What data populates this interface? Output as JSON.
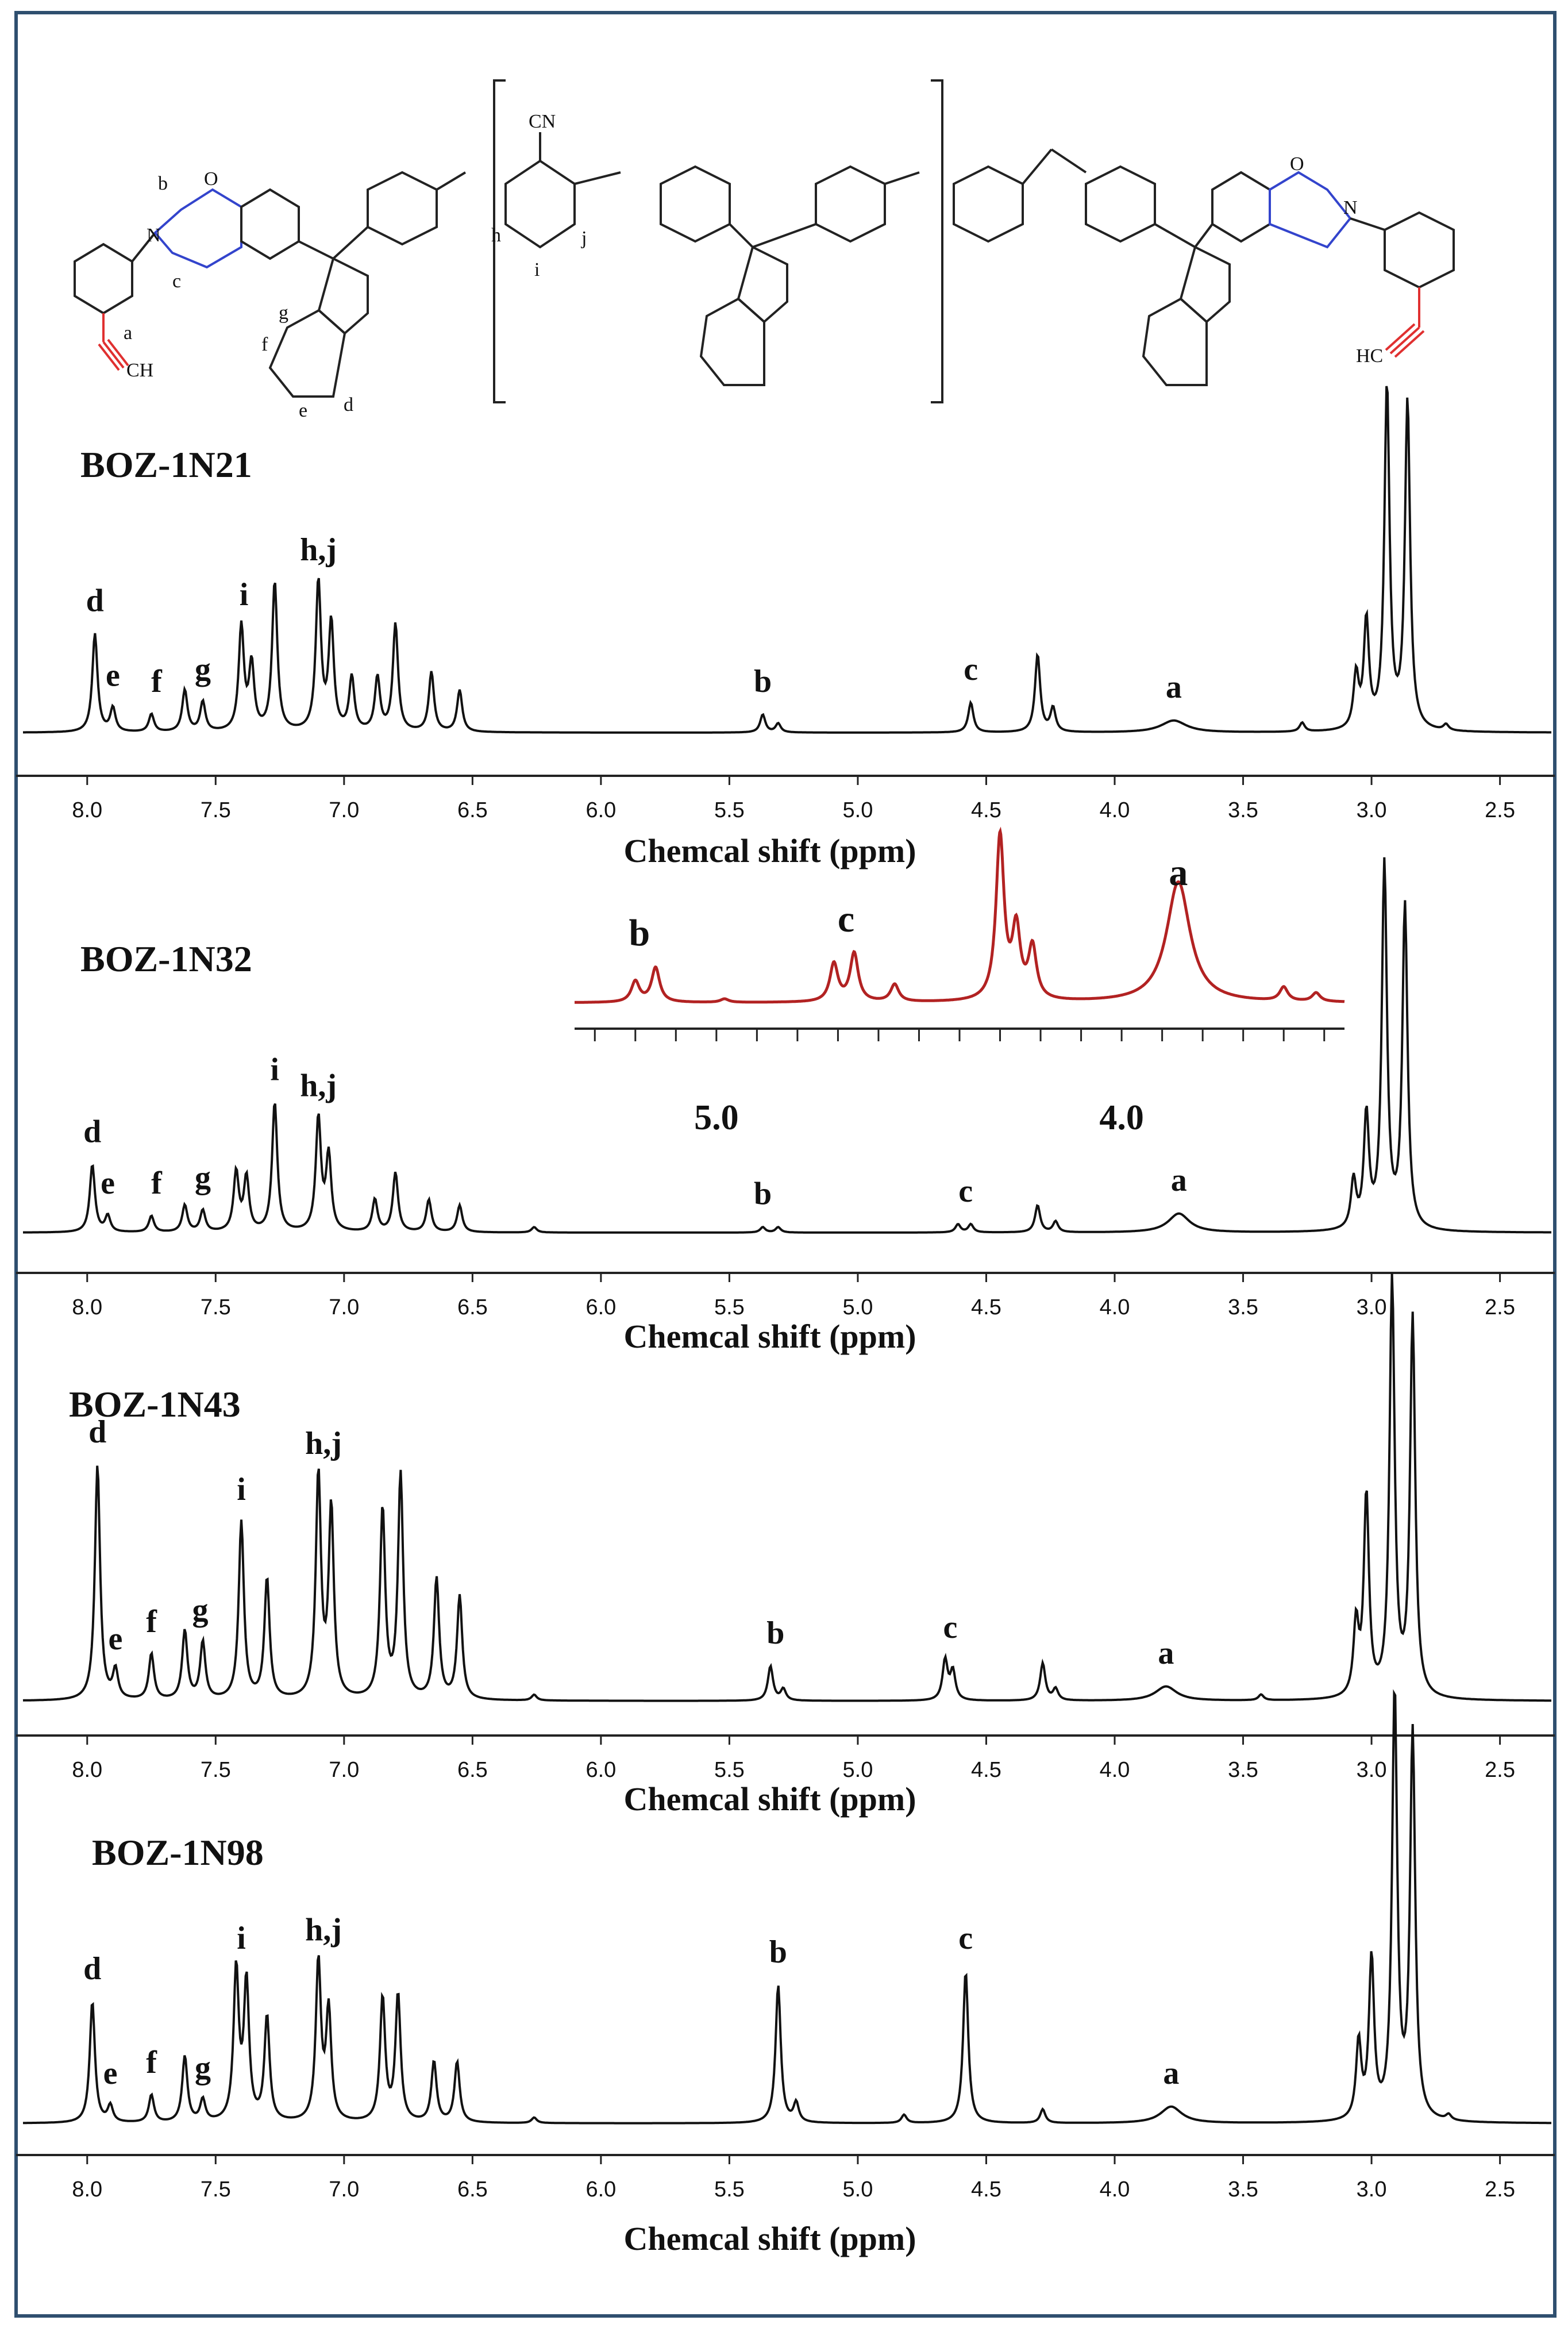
{
  "figure": {
    "border_color": "#2f4f6f",
    "structure": {
      "labels": [
        "b",
        "c",
        "a",
        "g",
        "f",
        "e",
        "d",
        "h",
        "i",
        "j",
        "CN",
        "CH",
        "HC",
        "N",
        "O"
      ],
      "end_group_color": "#e03030",
      "oxazine_color": "#3344cc"
    }
  },
  "chart_data": [
    {
      "type": "line",
      "name": "BOZ-1N21",
      "title": "BOZ-1N21",
      "xlabel": "Chemcal shift (ppm)",
      "xlim": [
        8.25,
        2.3
      ],
      "ticks": [
        "8.0",
        "7.5",
        "7.0",
        "6.5",
        "6.0",
        "5.5",
        "5.0",
        "4.5",
        "4.0",
        "3.5",
        "3.0",
        "2.5"
      ],
      "color": "#111111",
      "peaks": [
        {
          "x": 7.97,
          "h": 0.33
        },
        {
          "x": 7.9,
          "h": 0.08
        },
        {
          "x": 7.75,
          "h": 0.06
        },
        {
          "x": 7.62,
          "h": 0.14
        },
        {
          "x": 7.55,
          "h": 0.1
        },
        {
          "x": 7.4,
          "h": 0.35
        },
        {
          "x": 7.36,
          "h": 0.22
        },
        {
          "x": 7.27,
          "h": 0.5
        },
        {
          "x": 7.1,
          "h": 0.5
        },
        {
          "x": 7.05,
          "h": 0.36
        },
        {
          "x": 6.97,
          "h": 0.18
        },
        {
          "x": 6.87,
          "h": 0.18
        },
        {
          "x": 6.8,
          "h": 0.36
        },
        {
          "x": 6.66,
          "h": 0.2
        },
        {
          "x": 6.55,
          "h": 0.14
        },
        {
          "x": 5.37,
          "h": 0.06
        },
        {
          "x": 5.31,
          "h": 0.03
        },
        {
          "x": 4.56,
          "h": 0.1
        },
        {
          "x": 4.3,
          "h": 0.26
        },
        {
          "x": 4.24,
          "h": 0.08
        },
        {
          "x": 3.77,
          "h": 0.04,
          "w": 0.06
        },
        {
          "x": 3.27,
          "h": 0.03
        },
        {
          "x": 3.06,
          "h": 0.18
        },
        {
          "x": 3.02,
          "h": 0.36
        },
        {
          "x": 2.94,
          "h": 1.15
        },
        {
          "x": 2.86,
          "h": 1.1
        },
        {
          "x": 2.71,
          "h": 0.02
        }
      ],
      "annotations": [
        {
          "text": "d",
          "x": 7.97
        },
        {
          "text": "e",
          "x": 7.9
        },
        {
          "text": "f",
          "x": 7.73
        },
        {
          "text": "g",
          "x": 7.55
        },
        {
          "text": "i",
          "x": 7.39
        },
        {
          "text": "h,j",
          "x": 7.1
        },
        {
          "text": "b",
          "x": 5.37
        },
        {
          "text": "c",
          "x": 4.56
        },
        {
          "text": "a",
          "x": 3.77
        }
      ]
    },
    {
      "type": "line",
      "name": "BOZ-1N32",
      "title": "BOZ-1N32",
      "xlabel": "Chemcal shift (ppm)",
      "xlim": [
        8.25,
        2.3
      ],
      "ticks": [
        "8.0",
        "7.5",
        "7.0",
        "6.5",
        "6.0",
        "5.5",
        "5.0",
        "4.5",
        "4.0",
        "3.5",
        "3.0",
        "2.5"
      ],
      "color": "#111111",
      "peaks": [
        {
          "x": 7.98,
          "h": 0.25
        },
        {
          "x": 7.92,
          "h": 0.06
        },
        {
          "x": 7.75,
          "h": 0.06
        },
        {
          "x": 7.62,
          "h": 0.1
        },
        {
          "x": 7.55,
          "h": 0.08
        },
        {
          "x": 7.42,
          "h": 0.22
        },
        {
          "x": 7.38,
          "h": 0.2
        },
        {
          "x": 7.27,
          "h": 0.48
        },
        {
          "x": 7.1,
          "h": 0.42
        },
        {
          "x": 7.06,
          "h": 0.28
        },
        {
          "x": 6.88,
          "h": 0.12
        },
        {
          "x": 6.8,
          "h": 0.22
        },
        {
          "x": 6.67,
          "h": 0.12
        },
        {
          "x": 6.55,
          "h": 0.1
        },
        {
          "x": 6.26,
          "h": 0.02
        },
        {
          "x": 5.37,
          "h": 0.02
        },
        {
          "x": 5.31,
          "h": 0.02
        },
        {
          "x": 4.61,
          "h": 0.03
        },
        {
          "x": 4.56,
          "h": 0.03
        },
        {
          "x": 4.3,
          "h": 0.1
        },
        {
          "x": 4.23,
          "h": 0.04
        },
        {
          "x": 3.75,
          "h": 0.07,
          "w": 0.05
        },
        {
          "x": 3.07,
          "h": 0.18
        },
        {
          "x": 3.02,
          "h": 0.42
        },
        {
          "x": 2.95,
          "h": 1.35
        },
        {
          "x": 2.87,
          "h": 1.2
        }
      ],
      "annotations": [
        {
          "text": "d",
          "x": 7.98
        },
        {
          "text": "e",
          "x": 7.92
        },
        {
          "text": "f",
          "x": 7.73
        },
        {
          "text": "g",
          "x": 7.55
        },
        {
          "text": "i",
          "x": 7.27
        },
        {
          "text": "h,j",
          "x": 7.1
        },
        {
          "text": "b",
          "x": 5.37
        },
        {
          "text": "c",
          "x": 4.58
        },
        {
          "text": "a",
          "x": 3.75
        }
      ],
      "inset": {
        "color": "#b22222",
        "xlim": [
          5.35,
          3.45
        ],
        "ticks": [
          "5.0",
          "4.0"
        ],
        "peaks": [
          {
            "x": 5.2,
            "h": 0.12
          },
          {
            "x": 5.15,
            "h": 0.2
          },
          {
            "x": 4.98,
            "h": 0.02
          },
          {
            "x": 4.71,
            "h": 0.22
          },
          {
            "x": 4.66,
            "h": 0.28
          },
          {
            "x": 4.56,
            "h": 0.1
          },
          {
            "x": 4.3,
            "h": 0.95
          },
          {
            "x": 4.26,
            "h": 0.4
          },
          {
            "x": 4.22,
            "h": 0.3
          },
          {
            "x": 3.86,
            "h": 0.7,
            "w": 0.035
          },
          {
            "x": 3.6,
            "h": 0.08
          },
          {
            "x": 3.52,
            "h": 0.05
          }
        ],
        "annotations": [
          {
            "text": "b",
            "x": 5.19
          },
          {
            "text": "c",
            "x": 4.68
          },
          {
            "text": "a",
            "x": 3.86
          }
        ]
      }
    },
    {
      "type": "line",
      "name": "BOZ-1N43",
      "title": "BOZ-1N43",
      "xlabel": "Chemcal shift (ppm)",
      "xlim": [
        8.25,
        2.3
      ],
      "ticks": [
        "8.0",
        "7.5",
        "7.0",
        "6.5",
        "6.0",
        "5.5",
        "5.0",
        "4.5",
        "4.0",
        "3.5",
        "3.0",
        "2.5"
      ],
      "color": "#111111",
      "peaks": [
        {
          "x": 7.96,
          "h": 0.82
        },
        {
          "x": 7.89,
          "h": 0.1
        },
        {
          "x": 7.75,
          "h": 0.16
        },
        {
          "x": 7.62,
          "h": 0.24
        },
        {
          "x": 7.55,
          "h": 0.2
        },
        {
          "x": 7.4,
          "h": 0.62
        },
        {
          "x": 7.3,
          "h": 0.42
        },
        {
          "x": 7.1,
          "h": 0.78
        },
        {
          "x": 7.05,
          "h": 0.66
        },
        {
          "x": 6.85,
          "h": 0.66
        },
        {
          "x": 6.78,
          "h": 0.78
        },
        {
          "x": 6.64,
          "h": 0.42
        },
        {
          "x": 6.55,
          "h": 0.36
        },
        {
          "x": 6.26,
          "h": 0.02
        },
        {
          "x": 5.34,
          "h": 0.12
        },
        {
          "x": 5.29,
          "h": 0.04
        },
        {
          "x": 4.66,
          "h": 0.14
        },
        {
          "x": 4.63,
          "h": 0.1
        },
        {
          "x": 4.28,
          "h": 0.13
        },
        {
          "x": 4.23,
          "h": 0.04
        },
        {
          "x": 3.8,
          "h": 0.05,
          "w": 0.05
        },
        {
          "x": 3.43,
          "h": 0.02
        },
        {
          "x": 3.06,
          "h": 0.25
        },
        {
          "x": 3.02,
          "h": 0.7
        },
        {
          "x": 2.92,
          "h": 1.45
        },
        {
          "x": 2.84,
          "h": 1.32
        }
      ],
      "annotations": [
        {
          "text": "d",
          "x": 7.96
        },
        {
          "text": "e",
          "x": 7.89
        },
        {
          "text": "f",
          "x": 7.75
        },
        {
          "text": "g",
          "x": 7.56
        },
        {
          "text": "i",
          "x": 7.4
        },
        {
          "text": "h,j",
          "x": 7.08
        },
        {
          "text": "b",
          "x": 5.32
        },
        {
          "text": "c",
          "x": 4.64
        },
        {
          "text": "a",
          "x": 3.8
        }
      ]
    },
    {
      "type": "line",
      "name": "BOZ-1N98",
      "title": "BOZ-1N98",
      "xlabel": "Chemcal shift (ppm)",
      "xlim": [
        8.25,
        2.3
      ],
      "ticks": [
        "8.0",
        "7.5",
        "7.0",
        "6.5",
        "6.0",
        "5.5",
        "5.0",
        "4.5",
        "4.0",
        "3.5",
        "3.0",
        "2.5"
      ],
      "color": "#111111",
      "peaks": [
        {
          "x": 7.98,
          "h": 0.44
        },
        {
          "x": 7.91,
          "h": 0.06
        },
        {
          "x": 7.75,
          "h": 0.1
        },
        {
          "x": 7.62,
          "h": 0.24
        },
        {
          "x": 7.55,
          "h": 0.08
        },
        {
          "x": 7.42,
          "h": 0.55
        },
        {
          "x": 7.38,
          "h": 0.5
        },
        {
          "x": 7.3,
          "h": 0.38
        },
        {
          "x": 7.1,
          "h": 0.58
        },
        {
          "x": 7.06,
          "h": 0.4
        },
        {
          "x": 6.85,
          "h": 0.45
        },
        {
          "x": 6.79,
          "h": 0.46
        },
        {
          "x": 6.65,
          "h": 0.22
        },
        {
          "x": 6.56,
          "h": 0.22
        },
        {
          "x": 6.26,
          "h": 0.02
        },
        {
          "x": 5.31,
          "h": 0.5
        },
        {
          "x": 5.24,
          "h": 0.07
        },
        {
          "x": 4.82,
          "h": 0.03
        },
        {
          "x": 4.58,
          "h": 0.55
        },
        {
          "x": 4.28,
          "h": 0.05
        },
        {
          "x": 3.78,
          "h": 0.06,
          "w": 0.05
        },
        {
          "x": 3.05,
          "h": 0.28
        },
        {
          "x": 3.0,
          "h": 0.58
        },
        {
          "x": 2.91,
          "h": 1.55
        },
        {
          "x": 2.84,
          "h": 1.4
        },
        {
          "x": 2.7,
          "h": 0.02
        }
      ],
      "annotations": [
        {
          "text": "d",
          "x": 7.98
        },
        {
          "text": "e",
          "x": 7.91
        },
        {
          "text": "f",
          "x": 7.75
        },
        {
          "text": "g",
          "x": 7.55
        },
        {
          "text": "i",
          "x": 7.4
        },
        {
          "text": "h,j",
          "x": 7.08
        },
        {
          "text": "b",
          "x": 5.31
        },
        {
          "text": "c",
          "x": 4.58
        },
        {
          "text": "a",
          "x": 3.78
        }
      ]
    }
  ]
}
